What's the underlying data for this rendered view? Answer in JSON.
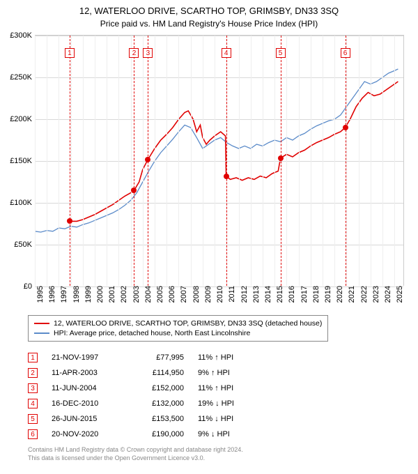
{
  "title_line1": "12, WATERLOO DRIVE, SCARTHO TOP, GRIMSBY, DN33 3SQ",
  "title_line2": "Price paid vs. HM Land Registry's House Price Index (HPI)",
  "chart": {
    "type": "line",
    "background_color": "#ffffff",
    "grid_color": "#d8d8d8",
    "minor_grid_color": "#eeeeee",
    "y_axis": {
      "min": 0,
      "max": 300000,
      "step": 50000,
      "labels": [
        "£0",
        "£50K",
        "£100K",
        "£150K",
        "£200K",
        "£250K",
        "£300K"
      ],
      "label_fontsize": 11
    },
    "x_axis": {
      "min": 1995,
      "max": 2025.8,
      "ticks": [
        1995,
        1996,
        1997,
        1998,
        1999,
        2000,
        2001,
        2002,
        2003,
        2004,
        2005,
        2006,
        2007,
        2008,
        2009,
        2010,
        2011,
        2012,
        2013,
        2014,
        2015,
        2016,
        2017,
        2018,
        2019,
        2020,
        2021,
        2022,
        2023,
        2024,
        2025
      ],
      "label_fontsize": 11
    },
    "series": [
      {
        "name": "property",
        "label": "12, WATERLOO DRIVE, SCARTHO TOP, GRIMSBY, DN33 3SQ (detached house)",
        "color": "#e00000",
        "line_width": 1.6,
        "data": [
          [
            1997.9,
            77995
          ],
          [
            1998.5,
            78000
          ],
          [
            1999,
            80000
          ],
          [
            1999.5,
            83000
          ],
          [
            2000,
            86000
          ],
          [
            2000.5,
            90000
          ],
          [
            2001,
            94000
          ],
          [
            2001.5,
            98000
          ],
          [
            2002,
            103000
          ],
          [
            2002.5,
            108000
          ],
          [
            2003,
            112000
          ],
          [
            2003.28,
            114950
          ],
          [
            2003.7,
            125000
          ],
          [
            2004,
            140000
          ],
          [
            2004.44,
            152000
          ],
          [
            2005,
            165000
          ],
          [
            2005.5,
            175000
          ],
          [
            2006,
            182000
          ],
          [
            2006.5,
            190000
          ],
          [
            2007,
            200000
          ],
          [
            2007.5,
            208000
          ],
          [
            2007.8,
            210000
          ],
          [
            2008.2,
            200000
          ],
          [
            2008.5,
            185000
          ],
          [
            2008.8,
            193000
          ],
          [
            2009,
            178000
          ],
          [
            2009.3,
            170000
          ],
          [
            2009.6,
            175000
          ],
          [
            2010,
            180000
          ],
          [
            2010.5,
            185000
          ],
          [
            2010.9,
            180000
          ],
          [
            2010.96,
            132000
          ],
          [
            2011.3,
            128000
          ],
          [
            2011.8,
            130000
          ],
          [
            2012.3,
            127000
          ],
          [
            2012.8,
            130000
          ],
          [
            2013.3,
            128000
          ],
          [
            2013.8,
            132000
          ],
          [
            2014.3,
            130000
          ],
          [
            2014.8,
            135000
          ],
          [
            2015.3,
            138000
          ],
          [
            2015.49,
            153500
          ],
          [
            2016,
            158000
          ],
          [
            2016.5,
            155000
          ],
          [
            2017,
            160000
          ],
          [
            2017.5,
            163000
          ],
          [
            2018,
            168000
          ],
          [
            2018.5,
            172000
          ],
          [
            2019,
            175000
          ],
          [
            2019.5,
            178000
          ],
          [
            2020,
            182000
          ],
          [
            2020.5,
            185000
          ],
          [
            2020.89,
            190000
          ],
          [
            2021.3,
            200000
          ],
          [
            2021.8,
            215000
          ],
          [
            2022.3,
            225000
          ],
          [
            2022.8,
            232000
          ],
          [
            2023.3,
            228000
          ],
          [
            2023.8,
            230000
          ],
          [
            2024.3,
            235000
          ],
          [
            2024.8,
            240000
          ],
          [
            2025.3,
            245000
          ]
        ]
      },
      {
        "name": "hpi",
        "label": "HPI: Average price, detached house, North East Lincolnshire",
        "color": "#5b8bc9",
        "line_width": 1.3,
        "data": [
          [
            1995,
            66000
          ],
          [
            1995.5,
            65000
          ],
          [
            1996,
            67000
          ],
          [
            1996.5,
            66000
          ],
          [
            1997,
            70000
          ],
          [
            1997.5,
            69000
          ],
          [
            1998,
            72000
          ],
          [
            1998.5,
            71000
          ],
          [
            1999,
            74000
          ],
          [
            1999.5,
            76000
          ],
          [
            2000,
            79000
          ],
          [
            2000.5,
            82000
          ],
          [
            2001,
            85000
          ],
          [
            2001.5,
            88000
          ],
          [
            2002,
            92000
          ],
          [
            2002.5,
            97000
          ],
          [
            2003,
            103000
          ],
          [
            2003.5,
            112000
          ],
          [
            2004,
            125000
          ],
          [
            2004.5,
            138000
          ],
          [
            2005,
            150000
          ],
          [
            2005.5,
            160000
          ],
          [
            2006,
            168000
          ],
          [
            2006.5,
            176000
          ],
          [
            2007,
            185000
          ],
          [
            2007.5,
            193000
          ],
          [
            2008,
            190000
          ],
          [
            2008.5,
            178000
          ],
          [
            2009,
            165000
          ],
          [
            2009.5,
            170000
          ],
          [
            2010,
            175000
          ],
          [
            2010.5,
            178000
          ],
          [
            2011,
            172000
          ],
          [
            2011.5,
            168000
          ],
          [
            2012,
            165000
          ],
          [
            2012.5,
            168000
          ],
          [
            2013,
            165000
          ],
          [
            2013.5,
            170000
          ],
          [
            2014,
            168000
          ],
          [
            2014.5,
            172000
          ],
          [
            2015,
            175000
          ],
          [
            2015.5,
            173000
          ],
          [
            2016,
            178000
          ],
          [
            2016.5,
            175000
          ],
          [
            2017,
            180000
          ],
          [
            2017.5,
            183000
          ],
          [
            2018,
            188000
          ],
          [
            2018.5,
            192000
          ],
          [
            2019,
            195000
          ],
          [
            2019.5,
            198000
          ],
          [
            2020,
            200000
          ],
          [
            2020.5,
            205000
          ],
          [
            2021,
            215000
          ],
          [
            2021.5,
            225000
          ],
          [
            2022,
            235000
          ],
          [
            2022.5,
            245000
          ],
          [
            2023,
            242000
          ],
          [
            2023.5,
            245000
          ],
          [
            2024,
            250000
          ],
          [
            2024.5,
            255000
          ],
          [
            2025,
            258000
          ],
          [
            2025.3,
            260000
          ]
        ]
      }
    ],
    "transaction_markers": [
      {
        "n": "1",
        "year": 1997.9,
        "price": 77995
      },
      {
        "n": "2",
        "year": 2003.28,
        "price": 114950
      },
      {
        "n": "3",
        "year": 2004.44,
        "price": 152000
      },
      {
        "n": "4",
        "year": 2010.96,
        "price": 132000
      },
      {
        "n": "5",
        "year": 2015.49,
        "price": 153500
      },
      {
        "n": "6",
        "year": 2020.89,
        "price": 190000
      }
    ],
    "marker_color": "#e00000",
    "marker_dash": "4,3"
  },
  "legend": {
    "border_color": "#888888",
    "items": [
      {
        "color": "#e00000",
        "label": "12, WATERLOO DRIVE, SCARTHO TOP, GRIMSBY, DN33 3SQ (detached house)"
      },
      {
        "color": "#5b8bc9",
        "label": "HPI: Average price, detached house, North East Lincolnshire"
      }
    ]
  },
  "transactions": [
    {
      "n": "1",
      "date": "21-NOV-1997",
      "price": "£77,995",
      "diff": "11% ↑ HPI"
    },
    {
      "n": "2",
      "date": "11-APR-2003",
      "price": "£114,950",
      "diff": "9% ↑ HPI"
    },
    {
      "n": "3",
      "date": "11-JUN-2004",
      "price": "£152,000",
      "diff": "11% ↑ HPI"
    },
    {
      "n": "4",
      "date": "16-DEC-2010",
      "price": "£132,000",
      "diff": "19% ↓ HPI"
    },
    {
      "n": "5",
      "date": "26-JUN-2015",
      "price": "£153,500",
      "diff": "11% ↓ HPI"
    },
    {
      "n": "6",
      "date": "20-NOV-2020",
      "price": "£190,000",
      "diff": "9% ↓ HPI"
    }
  ],
  "footer_line1": "Contains HM Land Registry data © Crown copyright and database right 2024.",
  "footer_line2": "This data is licensed under the Open Government Licence v3.0."
}
